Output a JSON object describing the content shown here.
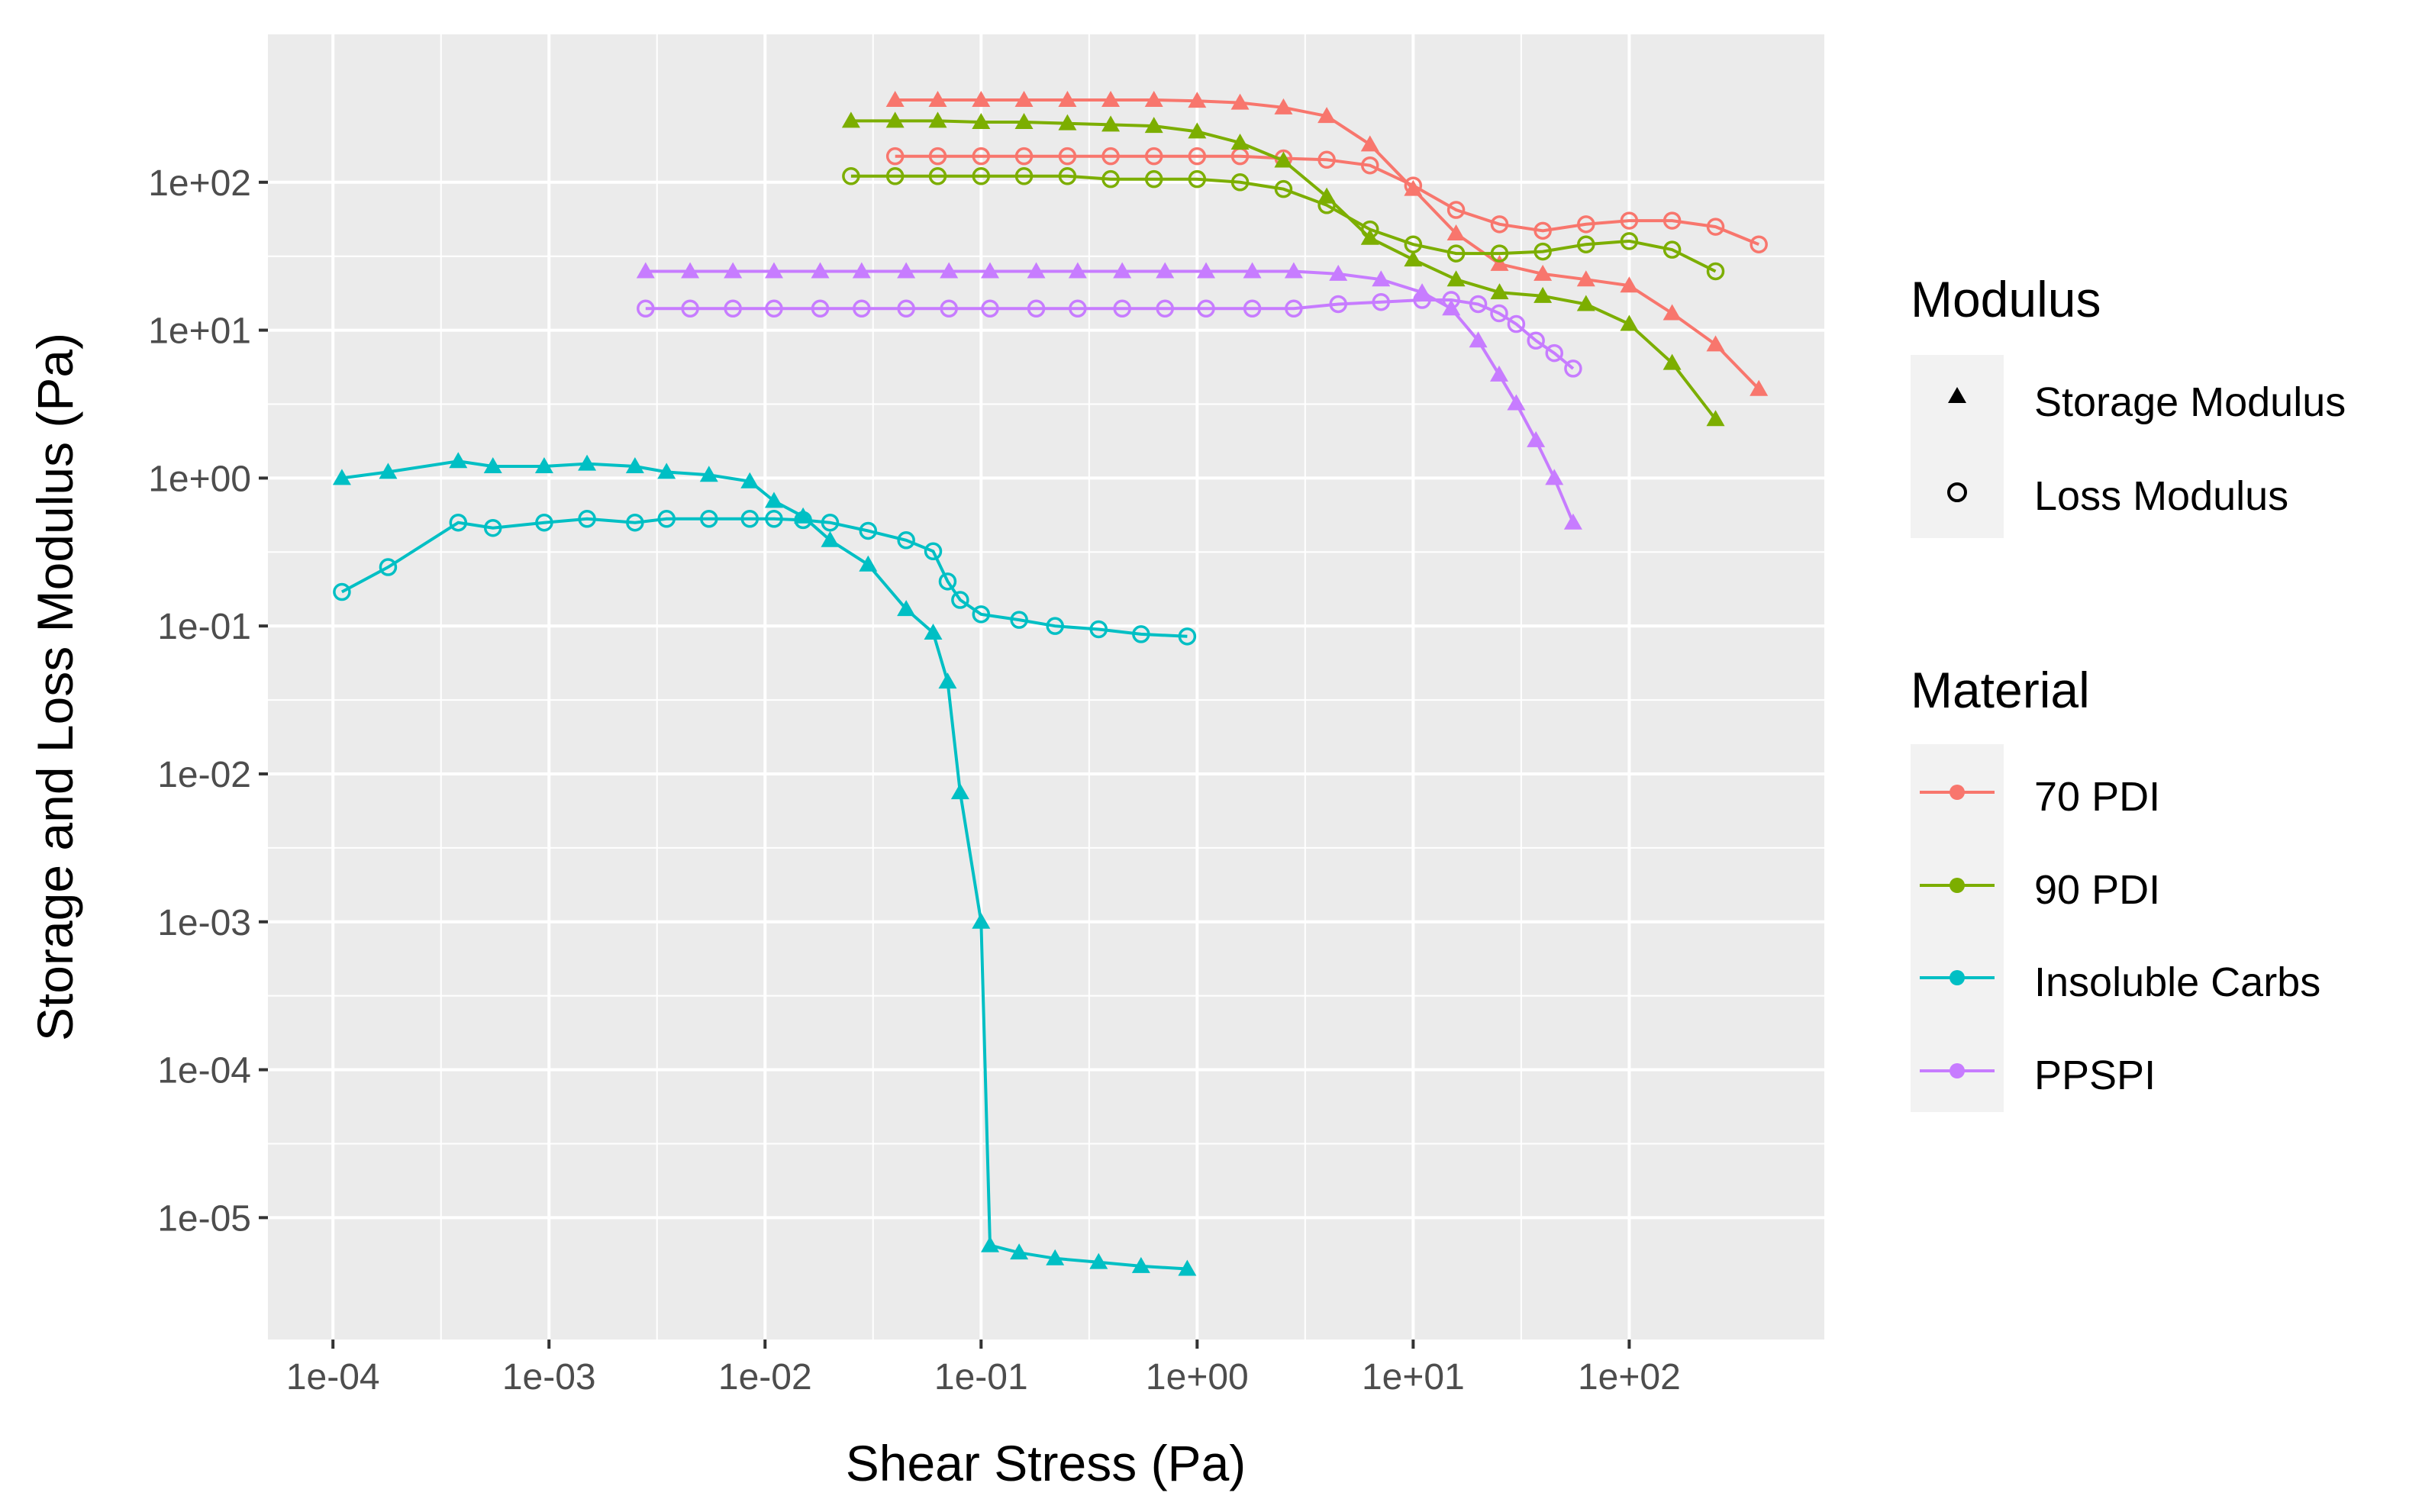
{
  "chart_data": {
    "type": "line",
    "title": "",
    "xlabel": "Shear Stress (Pa)",
    "ylabel": "Storage and Loss Modulus (Pa)",
    "xscale": "log10",
    "yscale": "log10",
    "xlim": [
      5e-05,
      800
    ],
    "ylim": [
      1.5e-06,
      1000
    ],
    "grid": true,
    "x_ticks": [
      {
        "value": 0.0001,
        "label": "1e-04"
      },
      {
        "value": 0.001,
        "label": "1e-03"
      },
      {
        "value": 0.01,
        "label": "1e-02"
      },
      {
        "value": 0.1,
        "label": "1e-01"
      },
      {
        "value": 1,
        "label": "1e+00"
      },
      {
        "value": 10,
        "label": "1e+01"
      },
      {
        "value": 100,
        "label": "1e+02"
      }
    ],
    "y_ticks": [
      {
        "value": 1e-05,
        "label": "1e-05"
      },
      {
        "value": 0.0001,
        "label": "1e-04"
      },
      {
        "value": 0.001,
        "label": "1e-03"
      },
      {
        "value": 0.01,
        "label": "1e-02"
      },
      {
        "value": 0.1,
        "label": "1e-01"
      },
      {
        "value": 1,
        "label": "1e+00"
      },
      {
        "value": 10,
        "label": "1e+01"
      },
      {
        "value": 100,
        "label": "1e+02"
      }
    ],
    "legend": {
      "placement": "right",
      "modulus_title": "Modulus",
      "modulus_items": [
        {
          "label": "Storage Modulus",
          "shape": "triangle"
        },
        {
          "label": "Loss Modulus",
          "shape": "circle-open"
        }
      ],
      "material_title": "Material",
      "material_items": [
        {
          "label": "70 PDI",
          "color": "#F8766D"
        },
        {
          "label": "90 PDI",
          "color": "#7CAE00"
        },
        {
          "label": "Insoluble Carbs",
          "color": "#00BFC4"
        },
        {
          "label": "PPSPI",
          "color": "#C77CFF"
        }
      ]
    },
    "series": [
      {
        "name": "70 PDI Storage Modulus",
        "material": "70 PDI",
        "modulus": "Storage Modulus",
        "color": "#F8766D",
        "shape": "triangle",
        "x": [
          0.04,
          0.063,
          0.1,
          0.158,
          0.251,
          0.398,
          0.631,
          1,
          1.58,
          2.51,
          3.98,
          6.31,
          10,
          15.8,
          25.1,
          39.8,
          63.1,
          100,
          158,
          251,
          398
        ],
        "y": [
          360,
          360,
          360,
          360,
          360,
          360,
          360,
          355,
          345,
          320,
          280,
          180,
          90,
          45,
          28,
          24,
          22,
          20,
          13,
          8,
          4
        ]
      },
      {
        "name": "70 PDI Loss Modulus",
        "material": "70 PDI",
        "modulus": "Loss Modulus",
        "color": "#F8766D",
        "shape": "circle-open",
        "x": [
          0.04,
          0.063,
          0.1,
          0.158,
          0.251,
          0.398,
          0.631,
          1,
          1.58,
          2.51,
          3.98,
          6.31,
          10,
          15.8,
          25.1,
          39.8,
          63.1,
          100,
          158,
          251,
          398
        ],
        "y": [
          150,
          150,
          150,
          150,
          150,
          150,
          150,
          150,
          150,
          145,
          142,
          130,
          95,
          65,
          52,
          47,
          52,
          55,
          55,
          50,
          38
        ]
      },
      {
        "name": "90 PDI Storage Modulus",
        "material": "90 PDI",
        "modulus": "Storage Modulus",
        "color": "#7CAE00",
        "shape": "triangle",
        "x": [
          0.025,
          0.04,
          0.063,
          0.1,
          0.158,
          0.251,
          0.398,
          0.631,
          1,
          1.58,
          2.51,
          3.98,
          6.31,
          10,
          15.8,
          25.1,
          39.8,
          63.1,
          100,
          158,
          251
        ],
        "y": [
          260,
          260,
          260,
          255,
          255,
          250,
          245,
          240,
          220,
          185,
          140,
          80,
          42,
          30,
          22,
          18,
          17,
          15,
          11,
          6,
          2.5
        ]
      },
      {
        "name": "90 PDI Loss Modulus",
        "material": "90 PDI",
        "modulus": "Loss Modulus",
        "color": "#7CAE00",
        "shape": "circle-open",
        "x": [
          0.025,
          0.04,
          0.063,
          0.1,
          0.158,
          0.251,
          0.398,
          0.631,
          1,
          1.58,
          2.51,
          3.98,
          6.31,
          10,
          15.8,
          25.1,
          39.8,
          63.1,
          100,
          158,
          251
        ],
        "y": [
          110,
          110,
          110,
          110,
          110,
          110,
          105,
          105,
          105,
          100,
          90,
          70,
          48,
          38,
          33,
          33,
          34,
          38,
          40,
          35,
          25
        ]
      },
      {
        "name": "Insoluble Carbs Storage Modulus",
        "material": "Insoluble Carbs",
        "modulus": "Storage Modulus",
        "color": "#00BFC4",
        "shape": "triangle",
        "x": [
          0.00011,
          0.00018,
          0.00038,
          0.00055,
          0.00095,
          0.0015,
          0.0025,
          0.0035,
          0.0055,
          0.0085,
          0.011,
          0.015,
          0.02,
          0.03,
          0.045,
          0.06,
          0.07,
          0.08,
          0.1,
          0.11,
          0.15,
          0.22,
          0.35,
          0.55,
          0.9
        ],
        "y": [
          1.0,
          1.1,
          1.3,
          1.2,
          1.2,
          1.25,
          1.2,
          1.1,
          1.05,
          0.95,
          0.7,
          0.55,
          0.38,
          0.26,
          0.13,
          0.09,
          0.042,
          0.0075,
          0.001,
          6.5e-06,
          5.8e-06,
          5.3e-06,
          5e-06,
          4.7e-06,
          4.5e-06
        ]
      },
      {
        "name": "Insoluble Carbs Loss Modulus",
        "material": "Insoluble Carbs",
        "modulus": "Loss Modulus",
        "color": "#00BFC4",
        "shape": "circle-open",
        "x": [
          0.00011,
          0.00018,
          0.00038,
          0.00055,
          0.00095,
          0.0015,
          0.0025,
          0.0035,
          0.0055,
          0.0085,
          0.011,
          0.015,
          0.02,
          0.03,
          0.045,
          0.06,
          0.07,
          0.08,
          0.1,
          0.15,
          0.22,
          0.35,
          0.55,
          0.9
        ],
        "y": [
          0.17,
          0.25,
          0.5,
          0.46,
          0.5,
          0.53,
          0.5,
          0.53,
          0.53,
          0.53,
          0.53,
          0.52,
          0.5,
          0.44,
          0.38,
          0.32,
          0.2,
          0.15,
          0.12,
          0.11,
          0.1,
          0.095,
          0.088,
          0.085
        ]
      },
      {
        "name": "PPSPI Storage Modulus",
        "material": "PPSPI",
        "modulus": "Storage Modulus",
        "color": "#C77CFF",
        "shape": "triangle",
        "x": [
          0.0028,
          0.0045,
          0.0071,
          0.011,
          0.018,
          0.028,
          0.045,
          0.071,
          0.11,
          0.18,
          0.28,
          0.45,
          0.71,
          1.1,
          1.8,
          2.8,
          4.5,
          7.1,
          11,
          15,
          20,
          25,
          30,
          37,
          45,
          55
        ],
        "y": [
          25,
          25,
          25,
          25,
          25,
          25,
          25,
          25,
          25,
          25,
          25,
          25,
          25,
          25,
          25,
          25,
          24,
          22,
          18,
          14,
          8.5,
          5,
          3.2,
          1.8,
          1,
          0.5
        ]
      },
      {
        "name": "PPSPI Loss Modulus",
        "material": "PPSPI",
        "modulus": "Loss Modulus",
        "color": "#C77CFF",
        "shape": "circle-open",
        "x": [
          0.0028,
          0.0045,
          0.0071,
          0.011,
          0.018,
          0.028,
          0.045,
          0.071,
          0.11,
          0.18,
          0.28,
          0.45,
          0.71,
          1.1,
          1.8,
          2.8,
          4.5,
          7.1,
          11,
          15,
          20,
          25,
          30,
          37,
          45,
          55
        ],
        "y": [
          14,
          14,
          14,
          14,
          14,
          14,
          14,
          14,
          14,
          14,
          14,
          14,
          14,
          14,
          14,
          14,
          15,
          15.5,
          16,
          16,
          15,
          13,
          11,
          8.5,
          7,
          5.5
        ]
      }
    ]
  }
}
